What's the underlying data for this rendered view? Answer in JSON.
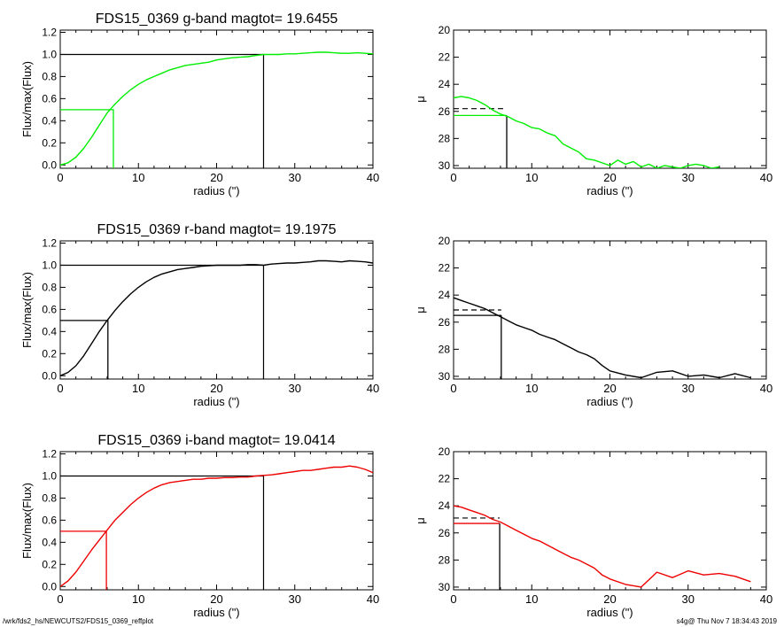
{
  "footer": {
    "path": "/wrk/fds2_hs/NEWCUTS2/FDS15_0369_reffplot",
    "stamp": "s4g@  Thu Nov  7 18:34:43 2019"
  },
  "chart_data": [
    {
      "type": "line",
      "band": "g",
      "color": "#00ee00",
      "title": "FDS15_0369 g-band  magtot=      19.6455",
      "xlabel": "radius (\")",
      "ylabel": "Flux/max(Flux)",
      "xlim": [
        0,
        40
      ],
      "ylim": [
        -0.03,
        1.22
      ],
      "xticks": [
        0,
        10,
        20,
        30,
        40
      ],
      "yticks": [
        0.0,
        0.2,
        0.4,
        0.6,
        0.8,
        1.0,
        1.2
      ],
      "x": [
        0,
        1,
        2,
        3,
        4,
        5,
        6,
        7,
        8,
        9,
        10,
        11,
        12,
        13,
        14,
        15,
        16,
        17,
        18,
        19,
        20,
        21,
        22,
        23,
        24,
        25,
        26,
        27,
        28,
        29,
        30,
        31,
        32,
        33,
        34,
        35,
        36,
        37,
        38,
        39,
        40
      ],
      "y": [
        0.0,
        0.02,
        0.07,
        0.15,
        0.25,
        0.36,
        0.47,
        0.55,
        0.62,
        0.68,
        0.73,
        0.77,
        0.8,
        0.83,
        0.86,
        0.88,
        0.9,
        0.91,
        0.92,
        0.93,
        0.95,
        0.96,
        0.97,
        0.975,
        0.98,
        0.99,
        1.0,
        1.0,
        1.0,
        1.005,
        1.005,
        1.01,
        1.015,
        1.02,
        1.02,
        1.015,
        1.01,
        1.01,
        1.015,
        1.01,
        1.005
      ],
      "half_radius": 6.8,
      "total_radius": 26.0,
      "half_level": 0.5,
      "total_level": 1.0
    },
    {
      "type": "line",
      "band": "g",
      "color": "#00ee00",
      "xlabel": "radius (\")",
      "ylabel": "μ",
      "xlim": [
        0,
        40
      ],
      "ylim": [
        30.2,
        20
      ],
      "y_inverted": true,
      "xticks": [
        0,
        10,
        20,
        30,
        40
      ],
      "yticks": [
        20,
        22,
        24,
        26,
        28,
        30
      ],
      "x": [
        0,
        1,
        2,
        3,
        4,
        5,
        6,
        7,
        8,
        9,
        10,
        11,
        12,
        13,
        14,
        15,
        16,
        17,
        18,
        19,
        20,
        21,
        22,
        23,
        24,
        25,
        26,
        27,
        28,
        29,
        30,
        31,
        32,
        33,
        34
      ],
      "y": [
        25.0,
        24.9,
        25.0,
        25.2,
        25.5,
        25.9,
        26.2,
        26.4,
        26.7,
        26.9,
        27.2,
        27.3,
        27.6,
        27.8,
        28.4,
        28.7,
        29.0,
        29.5,
        29.6,
        29.8,
        30.0,
        29.6,
        29.9,
        29.7,
        30.1,
        29.9,
        30.2,
        30.0,
        30.1,
        30.2,
        30.0,
        29.9,
        30.0,
        30.2,
        30.1
      ],
      "mu_eff": 26.3,
      "mean_mu_eff": 25.8,
      "r_eff": 6.8
    },
    {
      "type": "line",
      "band": "r",
      "color": "#000000",
      "title": "FDS15_0369 r-band  magtot=      19.1975",
      "xlabel": "radius (\")",
      "ylabel": "Flux/max(Flux)",
      "xlim": [
        0,
        40
      ],
      "ylim": [
        -0.03,
        1.22
      ],
      "xticks": [
        0,
        10,
        20,
        30,
        40
      ],
      "yticks": [
        0.0,
        0.2,
        0.4,
        0.6,
        0.8,
        1.0,
        1.2
      ],
      "x": [
        0,
        1,
        2,
        3,
        4,
        5,
        6,
        7,
        8,
        9,
        10,
        11,
        12,
        13,
        14,
        15,
        16,
        17,
        18,
        19,
        20,
        21,
        22,
        23,
        24,
        25,
        26,
        27,
        28,
        29,
        30,
        31,
        32,
        33,
        34,
        35,
        36,
        37,
        38,
        39,
        40
      ],
      "y": [
        0.0,
        0.03,
        0.09,
        0.18,
        0.29,
        0.4,
        0.5,
        0.59,
        0.67,
        0.74,
        0.8,
        0.85,
        0.89,
        0.92,
        0.94,
        0.96,
        0.97,
        0.98,
        0.99,
        0.995,
        1.0,
        1.0,
        1.0,
        1.0,
        1.005,
        1.005,
        1.0,
        1.01,
        1.015,
        1.02,
        1.02,
        1.025,
        1.03,
        1.04,
        1.04,
        1.035,
        1.03,
        1.04,
        1.035,
        1.03,
        1.02
      ],
      "half_radius": 6.1,
      "total_radius": 26.0,
      "half_level": 0.5,
      "total_level": 1.0
    },
    {
      "type": "line",
      "band": "r",
      "color": "#000000",
      "xlabel": "radius (\")",
      "ylabel": "μ",
      "xlim": [
        0,
        40
      ],
      "ylim": [
        30.2,
        20
      ],
      "y_inverted": true,
      "xticks": [
        0,
        10,
        20,
        30,
        40
      ],
      "yticks": [
        20,
        22,
        24,
        26,
        28,
        30
      ],
      "x": [
        0,
        1,
        2,
        3,
        4,
        5,
        6,
        7,
        8,
        9,
        10,
        11,
        12,
        13,
        14,
        15,
        16,
        17,
        18,
        19,
        20,
        22,
        24,
        26,
        28,
        30,
        32,
        34,
        36,
        38
      ],
      "y": [
        24.2,
        24.4,
        24.6,
        24.8,
        25.0,
        25.3,
        25.6,
        25.9,
        26.2,
        26.4,
        26.6,
        26.9,
        27.1,
        27.3,
        27.6,
        27.9,
        28.2,
        28.4,
        28.7,
        29.2,
        29.6,
        29.9,
        30.1,
        29.7,
        29.6,
        30.0,
        29.9,
        30.1,
        29.8,
        30.1
      ],
      "mu_eff": 25.5,
      "mean_mu_eff": 25.1,
      "r_eff": 6.1
    },
    {
      "type": "line",
      "band": "i",
      "color": "#ee0000",
      "title": "FDS15_0369 i-band  magtot=      19.0414",
      "xlabel": "radius (\")",
      "ylabel": "Flux/max(Flux)",
      "xlim": [
        0,
        40
      ],
      "ylim": [
        -0.03,
        1.22
      ],
      "xticks": [
        0,
        10,
        20,
        30,
        40
      ],
      "yticks": [
        0.0,
        0.2,
        0.4,
        0.6,
        0.8,
        1.0,
        1.2
      ],
      "x": [
        0,
        1,
        2,
        3,
        4,
        5,
        6,
        7,
        8,
        9,
        10,
        11,
        12,
        13,
        14,
        15,
        16,
        17,
        18,
        19,
        20,
        21,
        22,
        23,
        24,
        25,
        26,
        27,
        28,
        29,
        30,
        31,
        32,
        33,
        34,
        35,
        36,
        37,
        38,
        39,
        40
      ],
      "y": [
        0.0,
        0.05,
        0.13,
        0.23,
        0.33,
        0.42,
        0.51,
        0.6,
        0.67,
        0.74,
        0.8,
        0.85,
        0.89,
        0.92,
        0.94,
        0.95,
        0.96,
        0.97,
        0.97,
        0.98,
        0.98,
        0.985,
        0.985,
        0.99,
        0.99,
        1.0,
        1.005,
        1.01,
        1.02,
        1.03,
        1.04,
        1.05,
        1.05,
        1.06,
        1.07,
        1.08,
        1.08,
        1.09,
        1.08,
        1.06,
        1.03
      ],
      "half_radius": 5.9,
      "total_radius": 26.0,
      "half_level": 0.5,
      "total_level": 1.0
    },
    {
      "type": "line",
      "band": "i",
      "color": "#ee0000",
      "xlabel": "radius (\")",
      "ylabel": "μ",
      "xlim": [
        0,
        40
      ],
      "ylim": [
        30.2,
        20
      ],
      "y_inverted": true,
      "xticks": [
        0,
        10,
        20,
        30,
        40
      ],
      "yticks": [
        20,
        22,
        24,
        26,
        28,
        30
      ],
      "x": [
        0,
        1,
        2,
        3,
        4,
        5,
        6,
        7,
        8,
        9,
        10,
        11,
        12,
        13,
        14,
        15,
        16,
        17,
        18,
        19,
        20,
        22,
        24,
        26,
        28,
        30,
        32,
        34,
        36,
        38
      ],
      "y": [
        24.0,
        24.1,
        24.3,
        24.5,
        24.7,
        25.0,
        25.2,
        25.5,
        25.8,
        26.1,
        26.4,
        26.6,
        26.9,
        27.2,
        27.5,
        27.8,
        28.0,
        28.3,
        28.6,
        29.1,
        29.4,
        29.8,
        30.0,
        28.9,
        29.3,
        28.8,
        29.1,
        29.0,
        29.2,
        29.6
      ],
      "mu_eff": 25.3,
      "mean_mu_eff": 24.9,
      "r_eff": 5.9
    }
  ]
}
